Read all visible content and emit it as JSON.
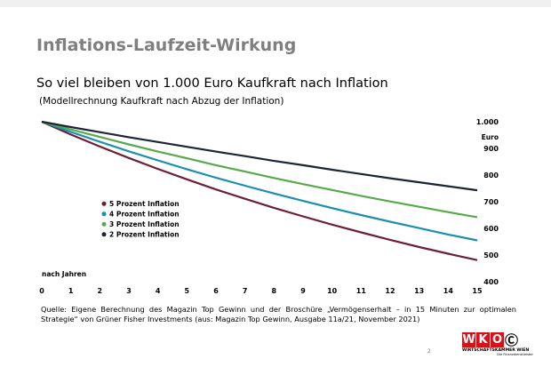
{
  "page_number": "2",
  "source_text": "Quelle: Eigene Berechnung des Magazin Top Gewinn und der Broschüre „Vermögenserhalt – in 15 Minuten zur optimalen Strategie“ von Grüner Fisher Investments (aus: Magazin Top Gewinn, Ausgabe 11a/21, November 2021)",
  "logo": {
    "letters": [
      "W",
      "K",
      "O"
    ],
    "line1": "WIRTSCHAFTSKAMMER WIEN",
    "line2": "Die Finanzdienstleister",
    "colors": {
      "red": "#d4121a"
    }
  },
  "chart_data": {
    "type": "line",
    "title": "Inflations-Laufzeit-Wirkung",
    "subtitle": "So viel bleiben von 1.000 Euro Kaufkraft nach Inflation",
    "note": "(Modellrechnung Kaufkraft nach Abzug der Inflation)",
    "xlabel": "nach Jahren",
    "ylabel": "Euro",
    "x": [
      0,
      1,
      2,
      3,
      4,
      5,
      6,
      7,
      8,
      9,
      10,
      11,
      12,
      13,
      14,
      15
    ],
    "x_ticks": [
      "0",
      "1",
      "2",
      "3",
      "4",
      "5",
      "6",
      "7",
      "8",
      "9",
      "10",
      "11",
      "12",
      "13",
      "14",
      "15"
    ],
    "y_ticks": [
      "1.000",
      "900",
      "800",
      "700",
      "600",
      "500",
      "400"
    ],
    "xlim": [
      0,
      15
    ],
    "ylim": [
      400,
      1000
    ],
    "grid": false,
    "legend_position": "left-middle",
    "series": [
      {
        "name": "5 Prozent Inflation",
        "color": "#6e1f37",
        "values": [
          1000,
          952,
          907,
          864,
          823,
          784,
          746,
          711,
          677,
          645,
          614,
          585,
          557,
          530,
          505,
          481
        ]
      },
      {
        "name": "4 Prozent Inflation",
        "color": "#1a8fb0",
        "values": [
          1000,
          962,
          925,
          889,
          855,
          822,
          790,
          760,
          731,
          703,
          676,
          650,
          625,
          601,
          577,
          555
        ]
      },
      {
        "name": "3 Prozent Inflation",
        "color": "#55ab4a",
        "values": [
          1000,
          971,
          943,
          915,
          888,
          863,
          837,
          813,
          789,
          766,
          744,
          722,
          701,
          681,
          661,
          642
        ]
      },
      {
        "name": "2 Prozent Inflation",
        "color": "#1c2438",
        "values": [
          1000,
          980,
          961,
          942,
          924,
          906,
          888,
          871,
          853,
          837,
          820,
          804,
          788,
          773,
          758,
          743
        ]
      }
    ]
  }
}
